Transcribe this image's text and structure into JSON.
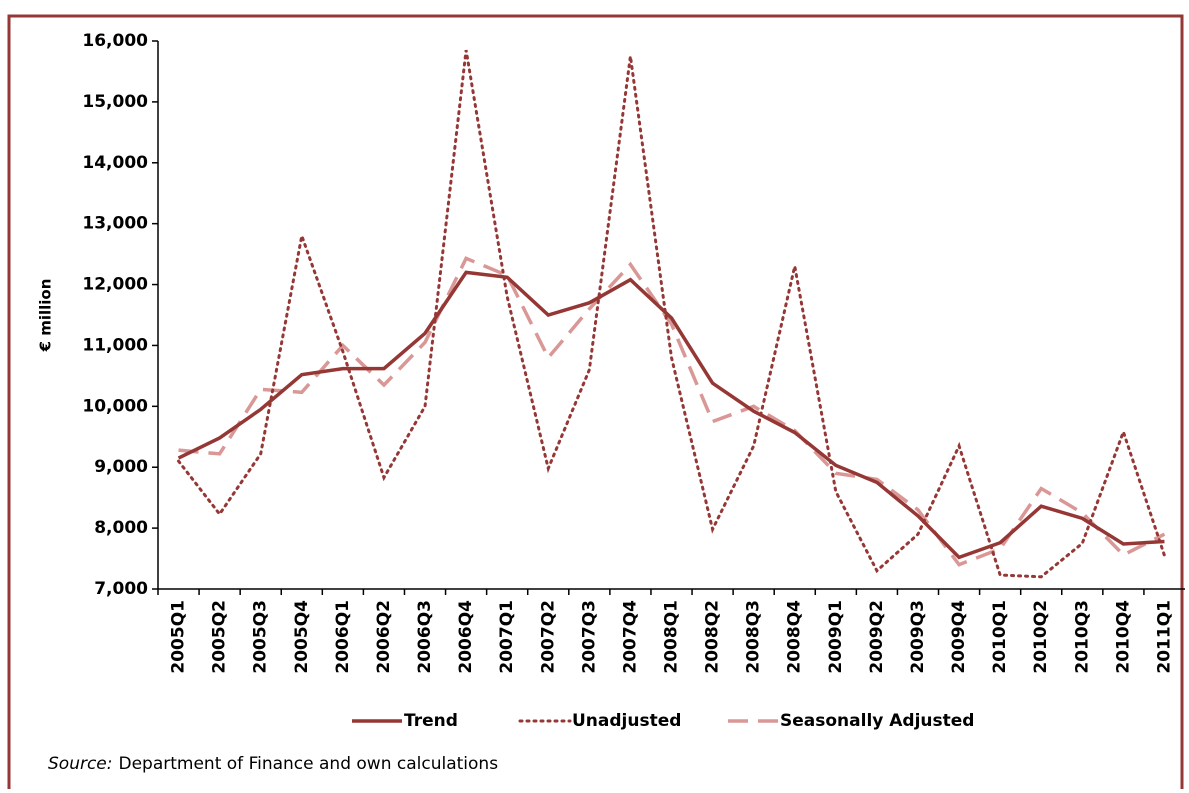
{
  "chart_data": {
    "type": "line",
    "y_label": "€ million",
    "categories": [
      "2005Q1",
      "2005Q2",
      "2005Q3",
      "2005Q4",
      "2006Q1",
      "2006Q2",
      "2006Q3",
      "2006Q4",
      "2007Q1",
      "2007Q2",
      "2007Q3",
      "2007Q4",
      "2008Q1",
      "2008Q2",
      "2008Q3",
      "2008Q4",
      "2009Q1",
      "2009Q2",
      "2009Q3",
      "2009Q4",
      "2010Q1",
      "2010Q2",
      "2010Q3",
      "2010Q4",
      "2011Q1"
    ],
    "series": [
      {
        "name": "Trend",
        "color": "#953735",
        "style": "solid",
        "values": [
          9150,
          9480,
          9950,
          10520,
          10620,
          10620,
          11200,
          12200,
          12120,
          11500,
          11700,
          12080,
          11450,
          10380,
          9920,
          9570,
          9030,
          8750,
          8200,
          7520,
          7760,
          8360,
          8160,
          7740,
          7780
        ]
      },
      {
        "name": "Unadjusted",
        "color": "#953735",
        "style": "dotted",
        "values": [
          9100,
          8230,
          9220,
          12800,
          10900,
          8830,
          10000,
          15850,
          11800,
          8980,
          10600,
          15750,
          10800,
          7980,
          9350,
          12300,
          8600,
          7300,
          7900,
          9350,
          7230,
          7200,
          7750,
          9580,
          7550
        ]
      },
      {
        "name": "Seasonally Adjusted",
        "color": "#d99795",
        "style": "dashed",
        "values": [
          9280,
          9220,
          10280,
          10230,
          11000,
          10350,
          11050,
          12430,
          12150,
          10800,
          11600,
          12330,
          11350,
          9750,
          10000,
          9600,
          8900,
          8800,
          8300,
          7400,
          7660,
          8650,
          8250,
          7560,
          7900
        ]
      }
    ],
    "ylim": [
      7000,
      16000
    ],
    "yticks": [
      {
        "value": 7000,
        "label": "7,000"
      },
      {
        "value": 8000,
        "label": "8,000"
      },
      {
        "value": 9000,
        "label": "9,000"
      },
      {
        "value": 10000,
        "label": "10,000"
      },
      {
        "value": 11000,
        "label": "11,000"
      },
      {
        "value": 12000,
        "label": "12,000"
      },
      {
        "value": 13000,
        "label": "13,000"
      },
      {
        "value": 14000,
        "label": "14,000"
      },
      {
        "value": 15000,
        "label": "15,000"
      },
      {
        "value": 16000,
        "label": "16,000"
      }
    ],
    "grid": false,
    "legend": "bottom",
    "source_label": "Source:",
    "source": "Department of Finance and own calculations"
  }
}
